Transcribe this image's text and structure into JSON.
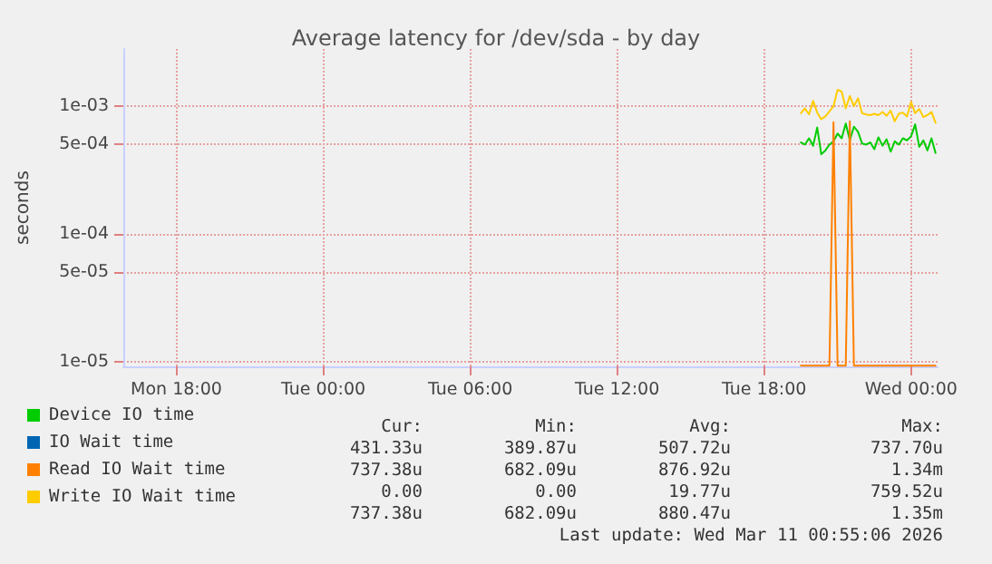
{
  "chart_data": {
    "type": "line",
    "title": "Average latency for /dev/sda - by day",
    "ylabel": "seconds",
    "log": "y",
    "grid": true,
    "legend": "bottom left",
    "marker": "none",
    "line_style": "solid",
    "xlim": [
      "2026-03-09T15:50",
      "2026-03-11T01:05"
    ],
    "xticks": [
      {
        "value": "2026-03-09T18:00",
        "label": "Mon 18:00"
      },
      {
        "value": "2026-03-10T00:00",
        "label": "Tue 00:00"
      },
      {
        "value": "2026-03-10T06:00",
        "label": "Tue 06:00"
      },
      {
        "value": "2026-03-10T12:00",
        "label": "Tue 12:00"
      },
      {
        "value": "2026-03-10T18:00",
        "label": "Tue 18:00"
      },
      {
        "value": "2026-03-11T00:00",
        "label": "Wed 00:00"
      }
    ],
    "ylim": [
      9.2e-06,
      0.0028
    ],
    "yticks": [
      {
        "value": 1e-05,
        "label": "1e-05"
      },
      {
        "value": 5e-05,
        "label": "5e-05"
      },
      {
        "value": 0.0001,
        "label": "1e-04"
      },
      {
        "value": 0.0005,
        "label": "5e-04"
      },
      {
        "value": 0.001,
        "label": "1e-03"
      }
    ],
    "x": [
      "2026-03-10T19:30",
      "2026-03-10T19:40",
      "2026-03-10T19:50",
      "2026-03-10T20:00",
      "2026-03-10T20:10",
      "2026-03-10T20:20",
      "2026-03-10T20:30",
      "2026-03-10T20:40",
      "2026-03-10T20:50",
      "2026-03-10T21:00",
      "2026-03-10T21:10",
      "2026-03-10T21:20",
      "2026-03-10T21:30",
      "2026-03-10T21:40",
      "2026-03-10T21:50",
      "2026-03-10T22:00",
      "2026-03-10T22:10",
      "2026-03-10T22:20",
      "2026-03-10T22:30",
      "2026-03-10T22:40",
      "2026-03-10T22:50",
      "2026-03-10T23:00",
      "2026-03-10T23:10",
      "2026-03-10T23:20",
      "2026-03-10T23:30",
      "2026-03-10T23:40",
      "2026-03-10T23:50",
      "2026-03-11T00:00",
      "2026-03-11T00:10",
      "2026-03-11T00:20",
      "2026-03-11T00:30",
      "2026-03-11T00:40",
      "2026-03-11T00:50",
      "2026-03-11T01:00"
    ],
    "series": [
      {
        "name": "Device IO time",
        "color": "#00cc00",
        "values": [
          0.00052,
          0.0005,
          0.00056,
          0.00049,
          0.00068,
          0.00042,
          0.00045,
          0.0005,
          0.00053,
          0.00061,
          0.00056,
          0.00073,
          0.00054,
          0.00069,
          0.00063,
          0.00051,
          0.0005,
          0.00052,
          0.00046,
          0.00057,
          0.00049,
          0.00055,
          0.00044,
          0.00053,
          0.0005,
          0.00056,
          0.00054,
          0.00058,
          0.00072,
          0.00048,
          0.00054,
          0.00045,
          0.00056,
          0.00043
        ]
      },
      {
        "name": "IO Wait time",
        "color": "#0066b3",
        "values": [
          null,
          null,
          null,
          null,
          null,
          null,
          null,
          null,
          null,
          null,
          null,
          null,
          null,
          null,
          null,
          null,
          null,
          null,
          null,
          null,
          null,
          null,
          null,
          null,
          null,
          null,
          null,
          null,
          null,
          null,
          null,
          null,
          null,
          null
        ]
      },
      {
        "name": "Read IO Wait time",
        "color": "#ff8000",
        "values": [
          9.3e-06,
          9.3e-06,
          9.3e-06,
          9.3e-06,
          9.3e-06,
          9.3e-06,
          9.3e-06,
          9.3e-06,
          0.00075,
          9.3e-06,
          9.3e-06,
          9.3e-06,
          0.00076,
          9.3e-06,
          9.3e-06,
          9.3e-06,
          9.3e-06,
          9.3e-06,
          9.3e-06,
          9.3e-06,
          9.3e-06,
          9.3e-06,
          9.3e-06,
          9.3e-06,
          9.3e-06,
          9.3e-06,
          9.3e-06,
          9.3e-06,
          9.3e-06,
          9.3e-06,
          9.3e-06,
          9.3e-06,
          9.3e-06,
          9.3e-06
        ]
      },
      {
        "name": "Write IO Wait time",
        "color": "#ffcc00",
        "values": [
          0.00088,
          0.00096,
          0.00086,
          0.0011,
          0.00089,
          0.00079,
          0.00083,
          0.00091,
          0.001,
          0.00134,
          0.0013,
          0.00096,
          0.0012,
          0.001,
          0.00115,
          0.00088,
          0.00086,
          0.00085,
          0.00087,
          0.00085,
          0.0009,
          0.00084,
          0.00092,
          0.00076,
          0.00087,
          0.00089,
          0.00083,
          0.00108,
          0.00088,
          0.00095,
          0.00082,
          0.00085,
          0.0009,
          0.00074
        ]
      }
    ],
    "annotations": [
      "Cur:",
      "Min:",
      "Avg:",
      "Max:",
      "431.33u",
      "389.87u",
      "507.72u",
      "737.70u",
      "737.38u",
      "682.09u",
      "876.92u",
      "1.34m",
      "0.00",
      "0.00",
      "19.77u",
      "759.52u",
      "737.38u",
      "682.09u",
      "880.47u",
      "1.35m",
      "Last update: Wed Mar 11 00:55:06 2026"
    ]
  }
}
